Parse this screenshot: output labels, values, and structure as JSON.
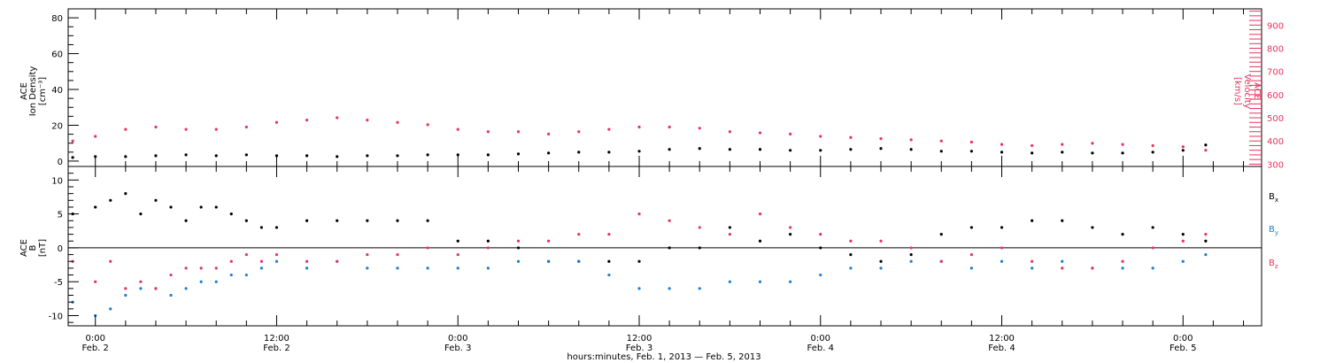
{
  "colors": {
    "axis": "#000000",
    "density": "#000000",
    "velocity": "#e8335f",
    "bx": "#000000",
    "by": "#1a7fd6",
    "bz": "#e8335f"
  },
  "top_panel": {
    "ylabel_lines": [
      "ACE",
      "Ion Density",
      "[cm⁻³]"
    ],
    "right_label_lines": [
      "ACE",
      "Velocity",
      "[km/s]"
    ],
    "left_ticks": [
      "0",
      "20",
      "40",
      "60",
      "80"
    ],
    "right_ticks": [
      "300",
      "400",
      "500",
      "600",
      "700",
      "800",
      "900"
    ]
  },
  "bottom_panel": {
    "ylabel_lines": [
      "ACE",
      "B",
      "[nT]"
    ],
    "ticks": [
      "-10",
      "-5",
      "0",
      "5",
      "10"
    ],
    "legend": [
      {
        "label": "B",
        "sub": "x"
      },
      {
        "label": "B",
        "sub": "y"
      },
      {
        "label": "B",
        "sub": "z"
      }
    ]
  },
  "x_axis": {
    "time_labels": [
      "0:00",
      "12:00",
      "0:00",
      "12:00",
      "0:00",
      "12:00",
      "0:00"
    ],
    "date_labels": [
      "Feb. 2",
      "Feb. 2",
      "Feb. 3",
      "Feb. 3",
      "Feb. 4",
      "Feb. 4",
      "Feb. 5"
    ],
    "title": "hours:minutes, Feb.  1, 2013 — Feb.  5, 2013"
  },
  "chart_data": [
    {
      "type": "scatter",
      "ylabel": "ACE Ion Density [cm⁻³]",
      "y2label": "ACE Velocity [km/s]",
      "x_unit": "hours since Feb. 1 0:00",
      "xlim": [
        22.2,
        101.2
      ],
      "ylim": [
        -3,
        85
      ],
      "y2lim": [
        290,
        970
      ],
      "series": [
        {
          "name": "Ion Density",
          "axis": "left",
          "x": [
            22.5,
            24,
            26,
            28,
            30,
            32,
            34,
            36,
            38,
            40,
            42,
            44,
            46,
            48,
            50,
            52,
            54,
            56,
            58,
            60,
            62,
            64,
            66,
            68,
            70,
            72,
            74,
            76,
            78,
            80,
            82,
            84,
            86,
            88,
            90,
            92,
            94,
            96,
            97.5
          ],
          "y": [
            2,
            2.5,
            2.5,
            3,
            3.5,
            3,
            3.5,
            3,
            3,
            2.5,
            3,
            3,
            3.5,
            3.5,
            3.5,
            4,
            4.5,
            5,
            5,
            5.5,
            6.5,
            7,
            6.5,
            6.5,
            6,
            6,
            6.5,
            7,
            6.5,
            5.5,
            5.5,
            5,
            4.5,
            5,
            4.5,
            4.5,
            5,
            6,
            9
          ]
        },
        {
          "name": "Velocity",
          "axis": "right",
          "x": [
            22.5,
            24,
            26,
            28,
            30,
            32,
            34,
            36,
            38,
            40,
            42,
            44,
            46,
            48,
            50,
            52,
            54,
            56,
            58,
            60,
            62,
            64,
            66,
            68,
            70,
            72,
            74,
            76,
            78,
            80,
            82,
            84,
            86,
            88,
            90,
            92,
            94,
            96,
            97.5
          ],
          "y": [
            400,
            420,
            450,
            460,
            450,
            450,
            460,
            480,
            490,
            500,
            490,
            480,
            470,
            450,
            440,
            440,
            430,
            440,
            450,
            460,
            460,
            455,
            440,
            435,
            430,
            420,
            415,
            410,
            405,
            400,
            395,
            385,
            380,
            385,
            390,
            385,
            380,
            375,
            360
          ]
        }
      ]
    },
    {
      "type": "scatter",
      "ylabel": "ACE B [nT]",
      "x_unit": "hours since Feb. 1 0:00",
      "xlim": [
        22.2,
        101.2
      ],
      "ylim": [
        -11.5,
        12
      ],
      "series": [
        {
          "name": "Bx",
          "x": [
            22.5,
            24,
            25,
            26,
            27,
            28,
            29,
            30,
            31,
            32,
            33,
            34,
            35,
            36,
            38,
            40,
            42,
            44,
            46,
            48,
            50,
            52,
            54,
            56,
            58,
            60,
            62,
            64,
            66,
            68,
            70,
            72,
            74,
            76,
            78,
            80,
            82,
            84,
            86,
            88,
            90,
            92,
            94,
            96,
            97.5
          ],
          "y": [
            5,
            6,
            7,
            8,
            5,
            7,
            6,
            4,
            6,
            6,
            5,
            4,
            3,
            3,
            4,
            4,
            4,
            4,
            4,
            1,
            1,
            0,
            -2,
            -2,
            -2,
            -2,
            0,
            0,
            3,
            1,
            2,
            0,
            -1,
            -2,
            -1,
            2,
            3,
            3,
            4,
            4,
            3,
            2,
            3,
            2,
            1
          ]
        },
        {
          "name": "By",
          "x": [
            22.5,
            24,
            25,
            26,
            27,
            28,
            29,
            30,
            31,
            32,
            33,
            34,
            35,
            36,
            38,
            40,
            42,
            44,
            46,
            48,
            50,
            52,
            54,
            56,
            58,
            60,
            62,
            64,
            66,
            68,
            70,
            72,
            74,
            76,
            78,
            80,
            82,
            84,
            86,
            88,
            90,
            92,
            94,
            96,
            97.5
          ],
          "y": [
            -8,
            -10,
            -9,
            -7,
            -6,
            -6,
            -7,
            -6,
            -5,
            -5,
            -4,
            -4,
            -3,
            -2,
            -3,
            -2,
            -3,
            -3,
            -3,
            -3,
            -3,
            -2,
            -2,
            -2,
            -4,
            -6,
            -6,
            -6,
            -5,
            -5,
            -5,
            -4,
            -3,
            -3,
            -2,
            -2,
            -3,
            -2,
            -3,
            -2,
            -3,
            -3,
            -3,
            -2,
            -1
          ]
        },
        {
          "name": "Bz",
          "x": [
            22.5,
            24,
            25,
            26,
            27,
            28,
            29,
            30,
            31,
            32,
            33,
            34,
            35,
            36,
            38,
            40,
            42,
            44,
            46,
            48,
            50,
            52,
            54,
            56,
            58,
            60,
            62,
            64,
            66,
            68,
            70,
            72,
            74,
            76,
            78,
            80,
            82,
            84,
            86,
            88,
            90,
            92,
            94,
            96,
            97.5
          ],
          "y": [
            -2,
            -5,
            -2,
            -6,
            -5,
            -6,
            -4,
            -3,
            -3,
            -3,
            -2,
            -1,
            -2,
            -1,
            -2,
            -2,
            -1,
            -1,
            0,
            -1,
            0,
            1,
            1,
            2,
            2,
            5,
            4,
            3,
            2,
            5,
            3,
            2,
            1,
            1,
            0,
            -2,
            -1,
            0,
            -2,
            -3,
            -3,
            -2,
            0,
            1,
            2
          ]
        }
      ]
    }
  ]
}
